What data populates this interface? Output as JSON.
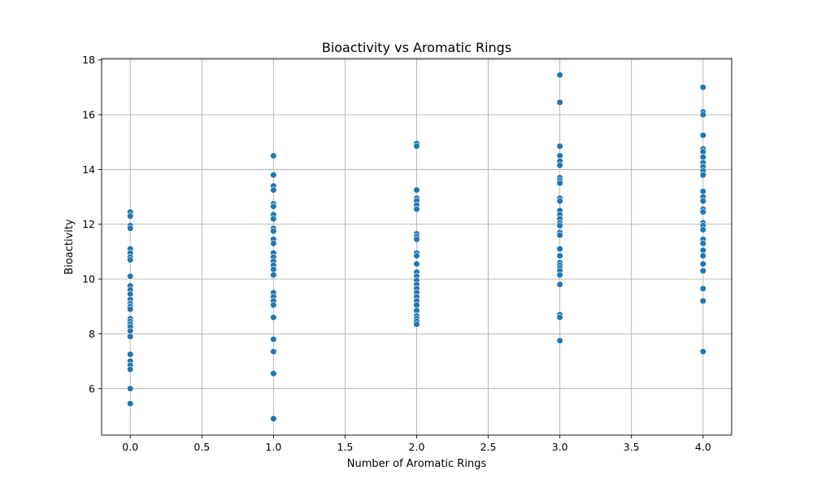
{
  "chart_data": {
    "type": "scatter",
    "title": "Bioactivity vs Aromatic Rings",
    "xlabel": "Number of Aromatic Rings",
    "ylabel": "Bioactivity",
    "xlim": [
      -0.2,
      4.2
    ],
    "ylim": [
      4.3,
      18.05
    ],
    "xticks": [
      0.0,
      0.5,
      1.0,
      1.5,
      2.0,
      2.5,
      3.0,
      3.5,
      4.0
    ],
    "xtick_labels": [
      "0.0",
      "0.5",
      "1.0",
      "1.5",
      "2.0",
      "2.5",
      "3.0",
      "3.5",
      "4.0"
    ],
    "yticks": [
      6,
      8,
      10,
      12,
      14,
      16,
      18
    ],
    "ytick_labels": [
      "6",
      "8",
      "10",
      "12",
      "14",
      "16",
      "18"
    ],
    "grid": true,
    "marker_color": "#1f77b4",
    "series": [
      {
        "points": [
          {
            "x": 0,
            "y": 12.45
          },
          {
            "x": 0,
            "y": 12.3
          },
          {
            "x": 0,
            "y": 11.95
          },
          {
            "x": 0,
            "y": 11.85
          },
          {
            "x": 0,
            "y": 11.1
          },
          {
            "x": 0,
            "y": 10.95
          },
          {
            "x": 0,
            "y": 10.8
          },
          {
            "x": 0,
            "y": 10.7
          },
          {
            "x": 0,
            "y": 10.1
          },
          {
            "x": 0,
            "y": 9.75
          },
          {
            "x": 0,
            "y": 9.6
          },
          {
            "x": 0,
            "y": 9.45
          },
          {
            "x": 0,
            "y": 9.25
          },
          {
            "x": 0,
            "y": 9.1
          },
          {
            "x": 0,
            "y": 9.0
          },
          {
            "x": 0,
            "y": 8.9
          },
          {
            "x": 0,
            "y": 8.55
          },
          {
            "x": 0,
            "y": 8.45
          },
          {
            "x": 0,
            "y": 8.35
          },
          {
            "x": 0,
            "y": 8.25
          },
          {
            "x": 0,
            "y": 8.1
          },
          {
            "x": 0,
            "y": 7.9
          },
          {
            "x": 0,
            "y": 7.25
          },
          {
            "x": 0,
            "y": 7.0
          },
          {
            "x": 0,
            "y": 6.85
          },
          {
            "x": 0,
            "y": 6.7
          },
          {
            "x": 0,
            "y": 6.0
          },
          {
            "x": 0,
            "y": 5.45
          },
          {
            "x": 1,
            "y": 14.5
          },
          {
            "x": 1,
            "y": 13.8
          },
          {
            "x": 1,
            "y": 13.4
          },
          {
            "x": 1,
            "y": 13.25
          },
          {
            "x": 1,
            "y": 12.75
          },
          {
            "x": 1,
            "y": 12.65
          },
          {
            "x": 1,
            "y": 12.35
          },
          {
            "x": 1,
            "y": 12.2
          },
          {
            "x": 1,
            "y": 11.85
          },
          {
            "x": 1,
            "y": 11.75
          },
          {
            "x": 1,
            "y": 11.45
          },
          {
            "x": 1,
            "y": 11.3
          },
          {
            "x": 1,
            "y": 10.95
          },
          {
            "x": 1,
            "y": 10.8
          },
          {
            "x": 1,
            "y": 10.65
          },
          {
            "x": 1,
            "y": 10.5
          },
          {
            "x": 1,
            "y": 10.35
          },
          {
            "x": 1,
            "y": 10.15
          },
          {
            "x": 1,
            "y": 9.5
          },
          {
            "x": 1,
            "y": 9.35
          },
          {
            "x": 1,
            "y": 9.2
          },
          {
            "x": 1,
            "y": 9.05
          },
          {
            "x": 1,
            "y": 8.6
          },
          {
            "x": 1,
            "y": 7.8
          },
          {
            "x": 1,
            "y": 7.35
          },
          {
            "x": 1,
            "y": 6.55
          },
          {
            "x": 1,
            "y": 4.9
          },
          {
            "x": 2,
            "y": 14.95
          },
          {
            "x": 2,
            "y": 14.85
          },
          {
            "x": 2,
            "y": 13.25
          },
          {
            "x": 2,
            "y": 12.95
          },
          {
            "x": 2,
            "y": 12.85
          },
          {
            "x": 2,
            "y": 12.7
          },
          {
            "x": 2,
            "y": 12.55
          },
          {
            "x": 2,
            "y": 11.65
          },
          {
            "x": 2,
            "y": 11.55
          },
          {
            "x": 2,
            "y": 11.45
          },
          {
            "x": 2,
            "y": 10.95
          },
          {
            "x": 2,
            "y": 10.85
          },
          {
            "x": 2,
            "y": 10.55
          },
          {
            "x": 2,
            "y": 10.25
          },
          {
            "x": 2,
            "y": 10.1
          },
          {
            "x": 2,
            "y": 9.95
          },
          {
            "x": 2,
            "y": 9.8
          },
          {
            "x": 2,
            "y": 9.65
          },
          {
            "x": 2,
            "y": 9.5
          },
          {
            "x": 2,
            "y": 9.35
          },
          {
            "x": 2,
            "y": 9.2
          },
          {
            "x": 2,
            "y": 9.05
          },
          {
            "x": 2,
            "y": 8.85
          },
          {
            "x": 2,
            "y": 8.65
          },
          {
            "x": 2,
            "y": 8.55
          },
          {
            "x": 2,
            "y": 8.45
          },
          {
            "x": 2,
            "y": 8.35
          },
          {
            "x": 3,
            "y": 17.45
          },
          {
            "x": 3,
            "y": 16.45
          },
          {
            "x": 3,
            "y": 14.85
          },
          {
            "x": 3,
            "y": 14.5
          },
          {
            "x": 3,
            "y": 14.3
          },
          {
            "x": 3,
            "y": 14.15
          },
          {
            "x": 3,
            "y": 13.7
          },
          {
            "x": 3,
            "y": 13.6
          },
          {
            "x": 3,
            "y": 13.5
          },
          {
            "x": 3,
            "y": 12.95
          },
          {
            "x": 3,
            "y": 12.85
          },
          {
            "x": 3,
            "y": 12.5
          },
          {
            "x": 3,
            "y": 12.35
          },
          {
            "x": 3,
            "y": 12.2
          },
          {
            "x": 3,
            "y": 12.05
          },
          {
            "x": 3,
            "y": 11.95
          },
          {
            "x": 3,
            "y": 11.7
          },
          {
            "x": 3,
            "y": 11.6
          },
          {
            "x": 3,
            "y": 11.1
          },
          {
            "x": 3,
            "y": 10.85
          },
          {
            "x": 3,
            "y": 10.6
          },
          {
            "x": 3,
            "y": 10.5
          },
          {
            "x": 3,
            "y": 10.4
          },
          {
            "x": 3,
            "y": 10.3
          },
          {
            "x": 3,
            "y": 10.15
          },
          {
            "x": 3,
            "y": 9.8
          },
          {
            "x": 3,
            "y": 8.7
          },
          {
            "x": 3,
            "y": 8.6
          },
          {
            "x": 3,
            "y": 7.75
          },
          {
            "x": 4,
            "y": 17.0
          },
          {
            "x": 4,
            "y": 16.1
          },
          {
            "x": 4,
            "y": 16.0
          },
          {
            "x": 4,
            "y": 15.25
          },
          {
            "x": 4,
            "y": 14.75
          },
          {
            "x": 4,
            "y": 14.65
          },
          {
            "x": 4,
            "y": 14.45
          },
          {
            "x": 4,
            "y": 14.25
          },
          {
            "x": 4,
            "y": 14.1
          },
          {
            "x": 4,
            "y": 13.95
          },
          {
            "x": 4,
            "y": 13.8
          },
          {
            "x": 4,
            "y": 13.2
          },
          {
            "x": 4,
            "y": 13.0
          },
          {
            "x": 4,
            "y": 12.85
          },
          {
            "x": 4,
            "y": 12.55
          },
          {
            "x": 4,
            "y": 12.45
          },
          {
            "x": 4,
            "y": 12.05
          },
          {
            "x": 4,
            "y": 11.95
          },
          {
            "x": 4,
            "y": 11.8
          },
          {
            "x": 4,
            "y": 11.45
          },
          {
            "x": 4,
            "y": 11.3
          },
          {
            "x": 4,
            "y": 11.05
          },
          {
            "x": 4,
            "y": 10.85
          },
          {
            "x": 4,
            "y": 10.55
          },
          {
            "x": 4,
            "y": 10.3
          },
          {
            "x": 4,
            "y": 9.65
          },
          {
            "x": 4,
            "y": 9.2
          },
          {
            "x": 4,
            "y": 7.35
          }
        ]
      }
    ]
  }
}
